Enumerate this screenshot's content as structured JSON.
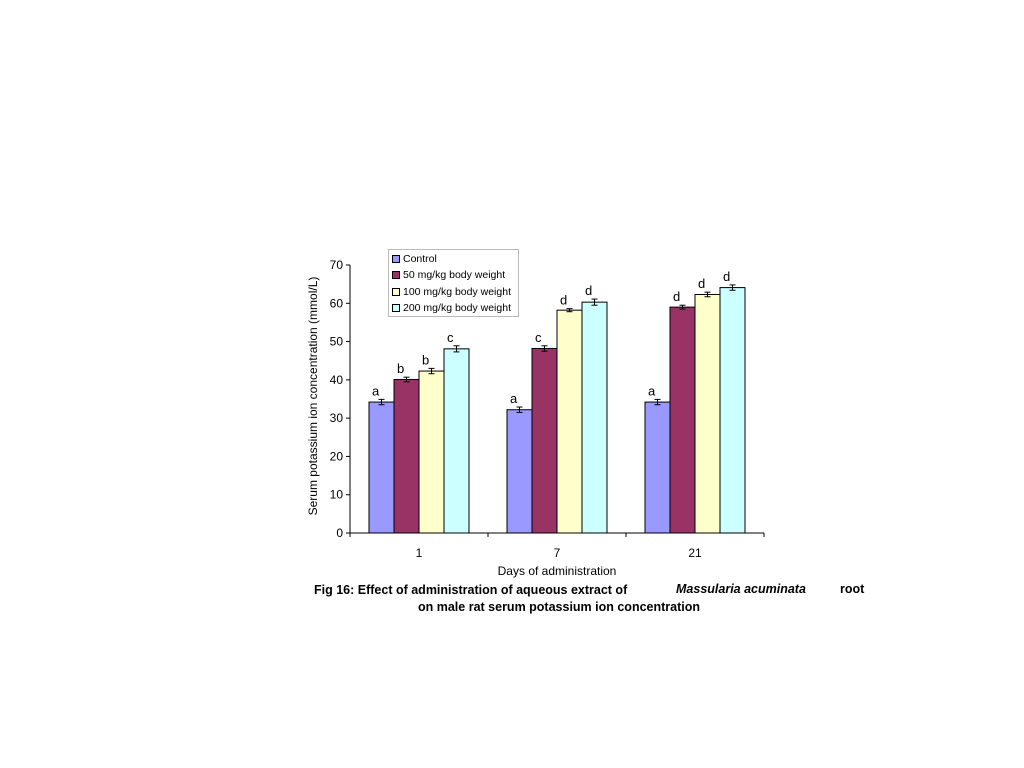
{
  "chart_data": {
    "type": "bar",
    "categories": [
      "1",
      "7",
      "21"
    ],
    "series": [
      {
        "name": "Control",
        "color": "#9999ff",
        "values": [
          34.2,
          32.2,
          34.2
        ],
        "errors": [
          0.7,
          0.7,
          0.7
        ],
        "labels": [
          "a",
          "a",
          "a"
        ]
      },
      {
        "name": "50 mg/kg body weight",
        "color": "#993366",
        "values": [
          40.1,
          48.2,
          59.0
        ],
        "errors": [
          0.6,
          0.7,
          0.5
        ],
        "labels": [
          "b",
          "c",
          "d"
        ]
      },
      {
        "name": "100 mg/kg body weight",
        "color": "#ffffcc",
        "values": [
          42.3,
          58.2,
          62.3
        ],
        "errors": [
          0.7,
          0.4,
          0.6
        ],
        "labels": [
          "b",
          "d",
          "d"
        ]
      },
      {
        "name": "200 mg/kg body weight",
        "color": "#ccffff",
        "values": [
          48.1,
          60.3,
          64.1
        ],
        "errors": [
          0.8,
          0.8,
          0.7
        ],
        "labels": [
          "c",
          "d",
          "d"
        ]
      }
    ],
    "xlabel": "Days of administration",
    "ylabel": "Serum potassium ion concentration (mmol/L)",
    "ylim": [
      0,
      70
    ],
    "yticks": [
      "0",
      "10",
      "20",
      "30",
      "40",
      "50",
      "60",
      "70"
    ],
    "grid": false,
    "legend": "top"
  },
  "caption": {
    "line1": "Fig 16: Effect of administration of aqueous extract of",
    "species": "Massularia acuminata",
    "root": "root",
    "line2": "on male rat serum potassium ion concentration"
  }
}
